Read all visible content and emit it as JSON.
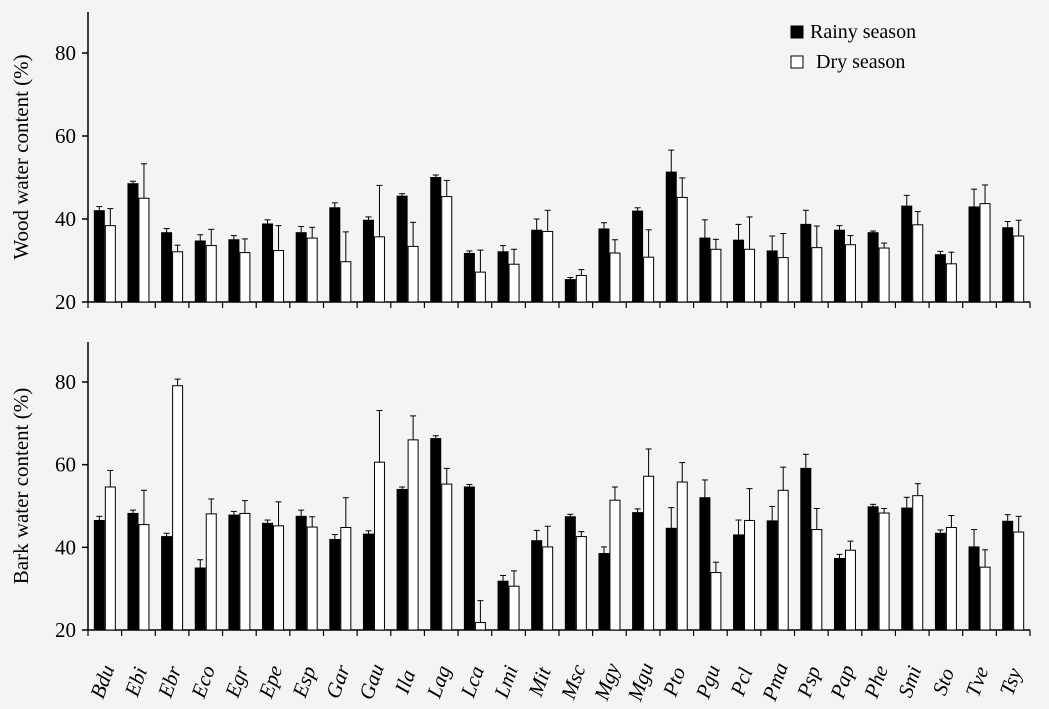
{
  "chart_data": [
    {
      "type": "bar",
      "ylabel": "Wood water content (%)",
      "ylim": [
        20,
        90
      ],
      "yticks": [
        20,
        40,
        60,
        80
      ],
      "grid": false,
      "legend": "top-right",
      "categories": [
        "Bdu",
        "Ebi",
        "Ebr",
        "Eco",
        "Egr",
        "Epe",
        "Esp",
        "Gar",
        "Gau",
        "Ila",
        "Lag",
        "Lca",
        "Lmi",
        "Mit",
        "Msc",
        "Mgy",
        "Mgu",
        "Pto",
        "Pgu",
        "Pcl",
        "Pma",
        "Psp",
        "Pap",
        "Phe",
        "Smi",
        "Sto",
        "Tve",
        "Tsy"
      ],
      "series": [
        {
          "name": "Rainy season",
          "values": [
            42.0,
            48.5,
            36.7,
            34.7,
            35.0,
            38.8,
            36.7,
            42.7,
            39.7,
            45.5,
            50.0,
            31.7,
            32.1,
            37.3,
            25.4,
            37.6,
            41.9,
            51.3,
            35.4,
            34.9,
            32.3,
            38.7,
            37.3,
            36.7,
            43.1,
            31.4,
            42.9,
            37.9
          ],
          "errors": [
            1.0,
            0.6,
            1.0,
            1.5,
            1.0,
            1.0,
            1.5,
            1.2,
            0.8,
            0.6,
            0.6,
            0.6,
            1.5,
            2.7,
            0.5,
            1.5,
            0.8,
            5.3,
            4.4,
            3.8,
            3.6,
            3.4,
            1.1,
            0.4,
            2.6,
            0.8,
            4.3,
            1.5
          ]
        },
        {
          "name": "Dry season",
          "values": [
            38.4,
            45.0,
            32.1,
            33.6,
            31.9,
            32.4,
            35.4,
            29.7,
            35.7,
            33.4,
            45.4,
            27.2,
            29.1,
            37.0,
            26.4,
            31.8,
            30.8,
            45.2,
            32.7,
            32.7,
            30.7,
            33.1,
            33.8,
            33.0,
            38.6,
            29.2,
            43.7,
            35.9
          ],
          "errors": [
            4.1,
            8.3,
            1.6,
            3.9,
            3.3,
            6.0,
            2.6,
            7.2,
            12.4,
            5.8,
            3.9,
            5.3,
            3.6,
            5.1,
            1.4,
            3.2,
            6.6,
            4.7,
            2.4,
            7.8,
            5.8,
            5.2,
            2.2,
            1.2,
            3.2,
            2.8,
            4.5,
            3.8
          ]
        }
      ]
    },
    {
      "type": "bar",
      "ylabel": "Bark water content (%)",
      "ylim": [
        20,
        90
      ],
      "yticks": [
        20,
        40,
        60,
        80
      ],
      "grid": false,
      "categories": [
        "Bdu",
        "Ebi",
        "Ebr",
        "Eco",
        "Egr",
        "Epe",
        "Esp",
        "Gar",
        "Gau",
        "Ila",
        "Lag",
        "Lca",
        "Lmi",
        "Mit",
        "Msc",
        "Mgy",
        "Mgu",
        "Pto",
        "Pgu",
        "Pcl",
        "Pma",
        "Psp",
        "Pap",
        "Phe",
        "Smi",
        "Sto",
        "Tve",
        "Tsy"
      ],
      "series": [
        {
          "name": "Rainy season",
          "values": [
            46.5,
            48.2,
            42.6,
            35.0,
            47.8,
            45.8,
            47.5,
            41.9,
            43.2,
            54.0,
            66.3,
            54.6,
            31.8,
            41.6,
            47.4,
            38.5,
            48.4,
            44.6,
            52.0,
            43.0,
            46.4,
            59.1,
            37.3,
            49.8,
            49.5,
            43.4,
            40.1,
            46.3
          ],
          "errors": [
            1.0,
            0.8,
            0.8,
            2.0,
            0.9,
            0.8,
            1.5,
            1.2,
            0.8,
            0.6,
            0.7,
            0.6,
            1.4,
            2.5,
            0.6,
            1.6,
            0.9,
            5.0,
            4.3,
            3.6,
            3.5,
            3.4,
            1.0,
            0.6,
            2.6,
            0.8,
            4.2,
            1.6
          ]
        },
        {
          "name": "Dry season",
          "values": [
            54.6,
            45.5,
            79.1,
            48.1,
            48.2,
            45.2,
            44.9,
            44.8,
            60.6,
            66.0,
            55.3,
            21.8,
            30.6,
            40.1,
            42.6,
            51.4,
            57.2,
            55.8,
            33.9,
            46.5,
            53.8,
            44.3,
            39.3,
            48.3,
            52.5,
            44.8,
            35.2,
            43.7
          ],
          "errors": [
            4.0,
            8.3,
            1.6,
            3.6,
            3.1,
            5.8,
            2.5,
            7.2,
            12.5,
            5.8,
            3.8,
            5.3,
            3.7,
            5.0,
            1.2,
            3.2,
            6.6,
            4.7,
            2.5,
            7.7,
            5.6,
            5.1,
            2.2,
            1.1,
            2.9,
            2.9,
            4.2,
            3.8
          ]
        }
      ]
    }
  ],
  "colors": {
    "rainy": "#000000",
    "dry": "#ffffff",
    "axis": "#000000",
    "background": "#f4f4f4"
  },
  "legend": {
    "rainy_label": "Rainy season",
    "dry_label": "Dry season"
  }
}
